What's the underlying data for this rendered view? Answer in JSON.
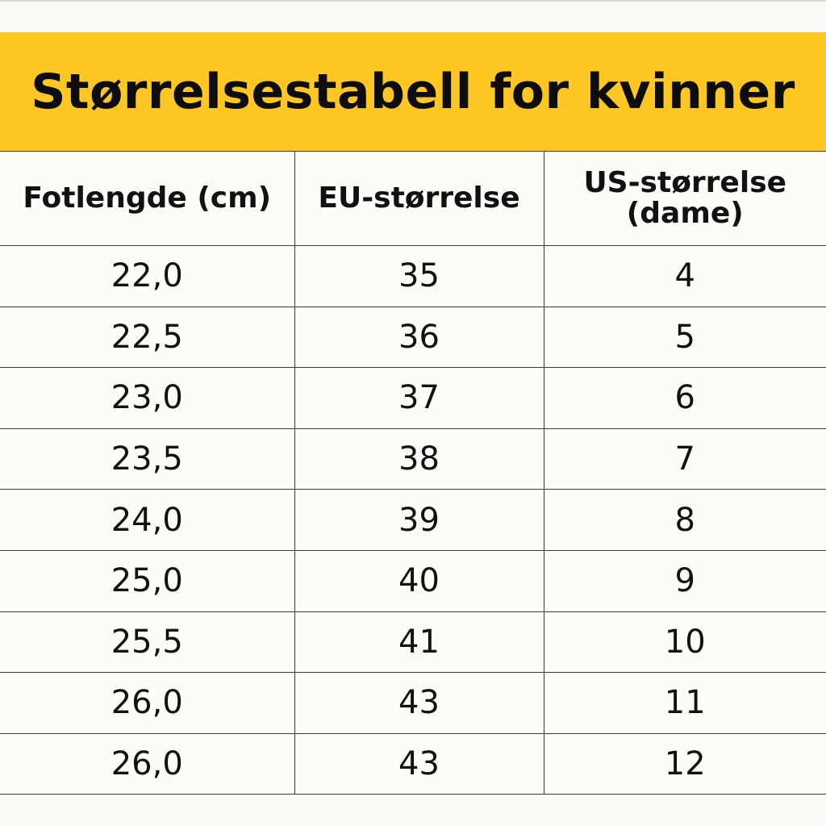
{
  "title": "Størrelsestabell for kvinner",
  "table": {
    "headers": [
      "Fotlengde (cm)",
      "EU-størrelse",
      "US-størrelse (dame)"
    ],
    "rows": [
      [
        "22,0",
        "35",
        "4"
      ],
      [
        "22,5",
        "36",
        "5"
      ],
      [
        "23,0",
        "37",
        "6"
      ],
      [
        "23,5",
        "38",
        "7"
      ],
      [
        "24,0",
        "39",
        "8"
      ],
      [
        "25,0",
        "40",
        "9"
      ],
      [
        "25,5",
        "41",
        "10"
      ],
      [
        "26,0",
        "43",
        "11"
      ],
      [
        "26,0",
        "43",
        "12"
      ]
    ]
  },
  "colors": {
    "banner": "#fec724",
    "text": "#111111",
    "grid": "#3a3a3a",
    "background": "#fbfaf6"
  }
}
